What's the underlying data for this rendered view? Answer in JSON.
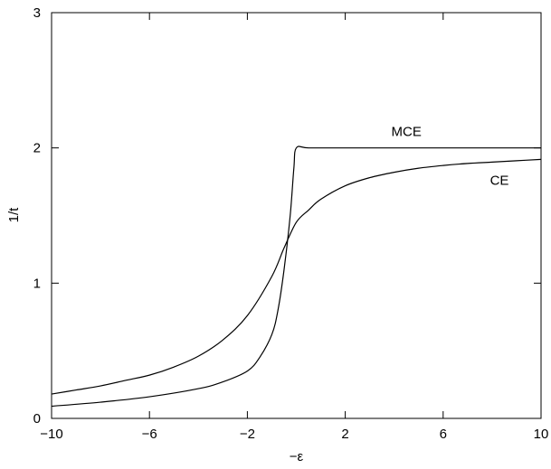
{
  "chart_data": {
    "type": "line",
    "xlabel": "−ε",
    "ylabel": "1/t",
    "xlim": [
      -10,
      10
    ],
    "ylim": [
      0,
      3
    ],
    "xticks": [
      -10,
      -6,
      -2,
      2,
      6,
      10
    ],
    "yticks": [
      0,
      1,
      2,
      3
    ],
    "xtick_labels": [
      "−10",
      "−6",
      "−2",
      "2",
      "6",
      "10"
    ],
    "ytick_labels": [
      "0",
      "1",
      "2",
      "3"
    ],
    "grid": false,
    "legend": "none",
    "series": [
      {
        "name": "MCE",
        "label_at": [
          4.5,
          2.12
        ],
        "x": [
          -10,
          -8,
          -6,
          -4,
          -3,
          -2,
          -1.5,
          -1,
          -0.75,
          -0.5,
          -0.25,
          -0.1,
          0,
          0.5,
          2,
          4,
          6,
          8,
          10
        ],
        "y": [
          0.09,
          0.12,
          0.16,
          0.22,
          0.27,
          0.35,
          0.45,
          0.62,
          0.8,
          1.1,
          1.5,
          1.85,
          2.0,
          2.0,
          2.0,
          2.0,
          2.0,
          2.0,
          2.0
        ]
      },
      {
        "name": "CE",
        "label_at": [
          8.3,
          1.76
        ],
        "x": [
          -10,
          -9,
          -8,
          -7,
          -6,
          -5,
          -4,
          -3,
          -2,
          -1,
          -0.5,
          0,
          0.5,
          1,
          2,
          3,
          4,
          5,
          6,
          7,
          8,
          9,
          10
        ],
        "y": [
          0.18,
          0.21,
          0.24,
          0.28,
          0.32,
          0.38,
          0.46,
          0.58,
          0.76,
          1.05,
          1.26,
          1.45,
          1.54,
          1.62,
          1.72,
          1.78,
          1.82,
          1.85,
          1.87,
          1.885,
          1.895,
          1.905,
          1.915
        ]
      }
    ]
  }
}
